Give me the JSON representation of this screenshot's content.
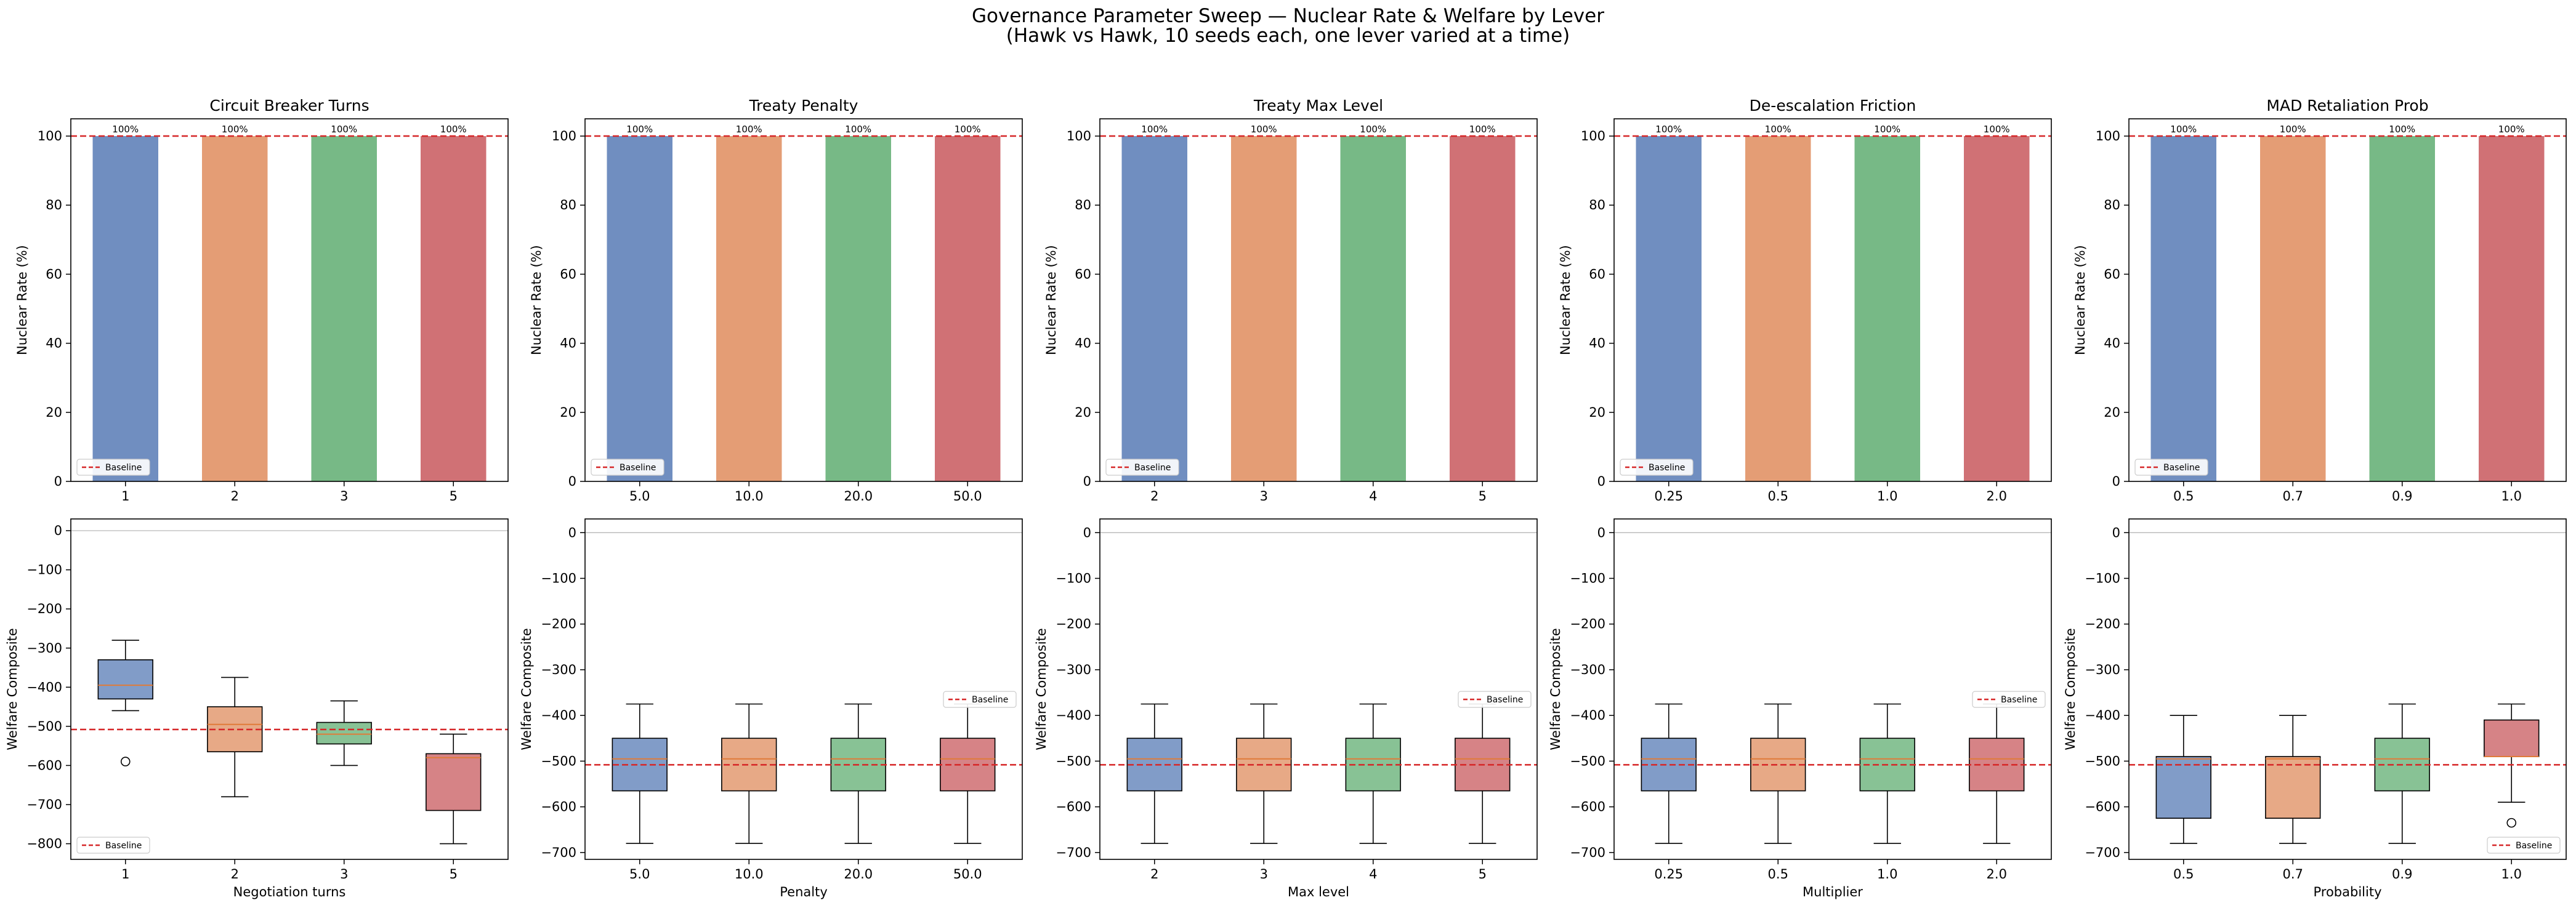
{
  "figure": {
    "title_line1": "Governance Parameter Sweep — Nuclear Rate & Welfare by Lever",
    "title_line2": "(Hawk vs Hawk, 10 seeds each, one lever varied at a time)"
  },
  "palette": [
    "#4c72b0",
    "#dd8452",
    "#55a868",
    "#c44e52"
  ],
  "baseline_color": "#d62728",
  "legend_label": "Baseline",
  "chart_data": [
    {
      "type": "bar",
      "title": "Circuit Breaker Turns",
      "ylabel": "Nuclear Rate (%)",
      "xlabel": "",
      "categories": [
        "1",
        "2",
        "3",
        "5"
      ],
      "values": [
        100,
        100,
        100,
        100
      ],
      "bar_labels": [
        "100%",
        "100%",
        "100%",
        "100%"
      ],
      "ylim": [
        0,
        105
      ],
      "yticks": [
        0,
        20,
        40,
        60,
        80,
        100
      ],
      "baseline": 100,
      "legend": "lower-left"
    },
    {
      "type": "bar",
      "title": "Treaty Penalty",
      "ylabel": "Nuclear Rate (%)",
      "xlabel": "",
      "categories": [
        "5.0",
        "10.0",
        "20.0",
        "50.0"
      ],
      "values": [
        100,
        100,
        100,
        100
      ],
      "bar_labels": [
        "100%",
        "100%",
        "100%",
        "100%"
      ],
      "ylim": [
        0,
        105
      ],
      "yticks": [
        0,
        20,
        40,
        60,
        80,
        100
      ],
      "baseline": 100,
      "legend": "lower-left"
    },
    {
      "type": "bar",
      "title": "Treaty Max Level",
      "ylabel": "Nuclear Rate (%)",
      "xlabel": "",
      "categories": [
        "2",
        "3",
        "4",
        "5"
      ],
      "values": [
        100,
        100,
        100,
        100
      ],
      "bar_labels": [
        "100%",
        "100%",
        "100%",
        "100%"
      ],
      "ylim": [
        0,
        105
      ],
      "yticks": [
        0,
        20,
        40,
        60,
        80,
        100
      ],
      "baseline": 100,
      "legend": "lower-left"
    },
    {
      "type": "bar",
      "title": "De-escalation Friction",
      "ylabel": "Nuclear Rate (%)",
      "xlabel": "",
      "categories": [
        "0.25",
        "0.5",
        "1.0",
        "2.0"
      ],
      "values": [
        100,
        100,
        100,
        100
      ],
      "bar_labels": [
        "100%",
        "100%",
        "100%",
        "100%"
      ],
      "ylim": [
        0,
        105
      ],
      "yticks": [
        0,
        20,
        40,
        60,
        80,
        100
      ],
      "baseline": 100,
      "legend": "lower-left"
    },
    {
      "type": "bar",
      "title": "MAD Retaliation Prob",
      "ylabel": "Nuclear Rate (%)",
      "xlabel": "",
      "categories": [
        "0.5",
        "0.7",
        "0.9",
        "1.0"
      ],
      "values": [
        100,
        100,
        100,
        100
      ],
      "bar_labels": [
        "100%",
        "100%",
        "100%",
        "100%"
      ],
      "ylim": [
        0,
        105
      ],
      "yticks": [
        0,
        20,
        40,
        60,
        80,
        100
      ],
      "baseline": 100,
      "legend": "lower-left"
    },
    {
      "type": "box",
      "title": "",
      "ylabel": "Welfare Composite",
      "xlabel": "Negotiation turns",
      "categories": [
        "1",
        "2",
        "3",
        "5"
      ],
      "boxes": [
        {
          "whislo": -460,
          "q1": -430,
          "med": -395,
          "q3": -330,
          "whishi": -280,
          "fliers": [
            -590
          ]
        },
        {
          "whislo": -680,
          "q1": -565,
          "med": -495,
          "q3": -450,
          "whishi": -375,
          "fliers": []
        },
        {
          "whislo": -600,
          "q1": -545,
          "med": -520,
          "q3": -490,
          "whishi": -435,
          "fliers": []
        },
        {
          "whislo": -800,
          "q1": -715,
          "med": -580,
          "q3": -570,
          "whishi": -520,
          "fliers": []
        }
      ],
      "ylim": [
        -840,
        30
      ],
      "yticks": [
        0,
        -100,
        -200,
        -300,
        -400,
        -500,
        -600,
        -700,
        -800
      ],
      "baseline": -508,
      "legend": "lower-left"
    },
    {
      "type": "box",
      "title": "",
      "ylabel": "Welfare Composite",
      "xlabel": "Penalty",
      "categories": [
        "5.0",
        "10.0",
        "20.0",
        "50.0"
      ],
      "boxes": [
        {
          "whislo": -680,
          "q1": -565,
          "med": -495,
          "q3": -450,
          "whishi": -375,
          "fliers": []
        },
        {
          "whislo": -680,
          "q1": -565,
          "med": -495,
          "q3": -450,
          "whishi": -375,
          "fliers": []
        },
        {
          "whislo": -680,
          "q1": -565,
          "med": -495,
          "q3": -450,
          "whishi": -375,
          "fliers": []
        },
        {
          "whislo": -680,
          "q1": -565,
          "med": -495,
          "q3": -450,
          "whishi": -375,
          "fliers": []
        }
      ],
      "ylim": [
        -715,
        30
      ],
      "yticks": [
        0,
        -100,
        -200,
        -300,
        -400,
        -500,
        -600,
        -700
      ],
      "baseline": -508,
      "legend": "right"
    },
    {
      "type": "box",
      "title": "",
      "ylabel": "Welfare Composite",
      "xlabel": "Max level",
      "categories": [
        "2",
        "3",
        "4",
        "5"
      ],
      "boxes": [
        {
          "whislo": -680,
          "q1": -565,
          "med": -495,
          "q3": -450,
          "whishi": -375,
          "fliers": []
        },
        {
          "whislo": -680,
          "q1": -565,
          "med": -495,
          "q3": -450,
          "whishi": -375,
          "fliers": []
        },
        {
          "whislo": -680,
          "q1": -565,
          "med": -495,
          "q3": -450,
          "whishi": -375,
          "fliers": []
        },
        {
          "whislo": -680,
          "q1": -565,
          "med": -495,
          "q3": -450,
          "whishi": -375,
          "fliers": []
        }
      ],
      "ylim": [
        -715,
        30
      ],
      "yticks": [
        0,
        -100,
        -200,
        -300,
        -400,
        -500,
        -600,
        -700
      ],
      "baseline": -508,
      "legend": "right"
    },
    {
      "type": "box",
      "title": "",
      "ylabel": "Welfare Composite",
      "xlabel": "Multiplier",
      "categories": [
        "0.25",
        "0.5",
        "1.0",
        "2.0"
      ],
      "boxes": [
        {
          "whislo": -680,
          "q1": -565,
          "med": -495,
          "q3": -450,
          "whishi": -375,
          "fliers": []
        },
        {
          "whislo": -680,
          "q1": -565,
          "med": -495,
          "q3": -450,
          "whishi": -375,
          "fliers": []
        },
        {
          "whislo": -680,
          "q1": -565,
          "med": -495,
          "q3": -450,
          "whishi": -375,
          "fliers": []
        },
        {
          "whislo": -680,
          "q1": -565,
          "med": -495,
          "q3": -450,
          "whishi": -375,
          "fliers": []
        }
      ],
      "ylim": [
        -715,
        30
      ],
      "yticks": [
        0,
        -100,
        -200,
        -300,
        -400,
        -500,
        -600,
        -700
      ],
      "baseline": -508,
      "legend": "right"
    },
    {
      "type": "box",
      "title": "",
      "ylabel": "Welfare Composite",
      "xlabel": "Probability",
      "categories": [
        "0.5",
        "0.7",
        "0.9",
        "1.0"
      ],
      "boxes": [
        {
          "whislo": -680,
          "q1": -625,
          "med": -495,
          "q3": -490,
          "whishi": -400,
          "fliers": []
        },
        {
          "whislo": -680,
          "q1": -625,
          "med": -495,
          "q3": -490,
          "whishi": -400,
          "fliers": []
        },
        {
          "whislo": -680,
          "q1": -565,
          "med": -495,
          "q3": -450,
          "whishi": -375,
          "fliers": []
        },
        {
          "whislo": -590,
          "q1": -490,
          "med": -490,
          "q3": -410,
          "whishi": -375,
          "fliers": [
            -635
          ]
        }
      ],
      "ylim": [
        -715,
        30
      ],
      "yticks": [
        0,
        -100,
        -200,
        -300,
        -400,
        -500,
        -600,
        -700
      ],
      "baseline": -508,
      "legend": "lower-right"
    }
  ]
}
